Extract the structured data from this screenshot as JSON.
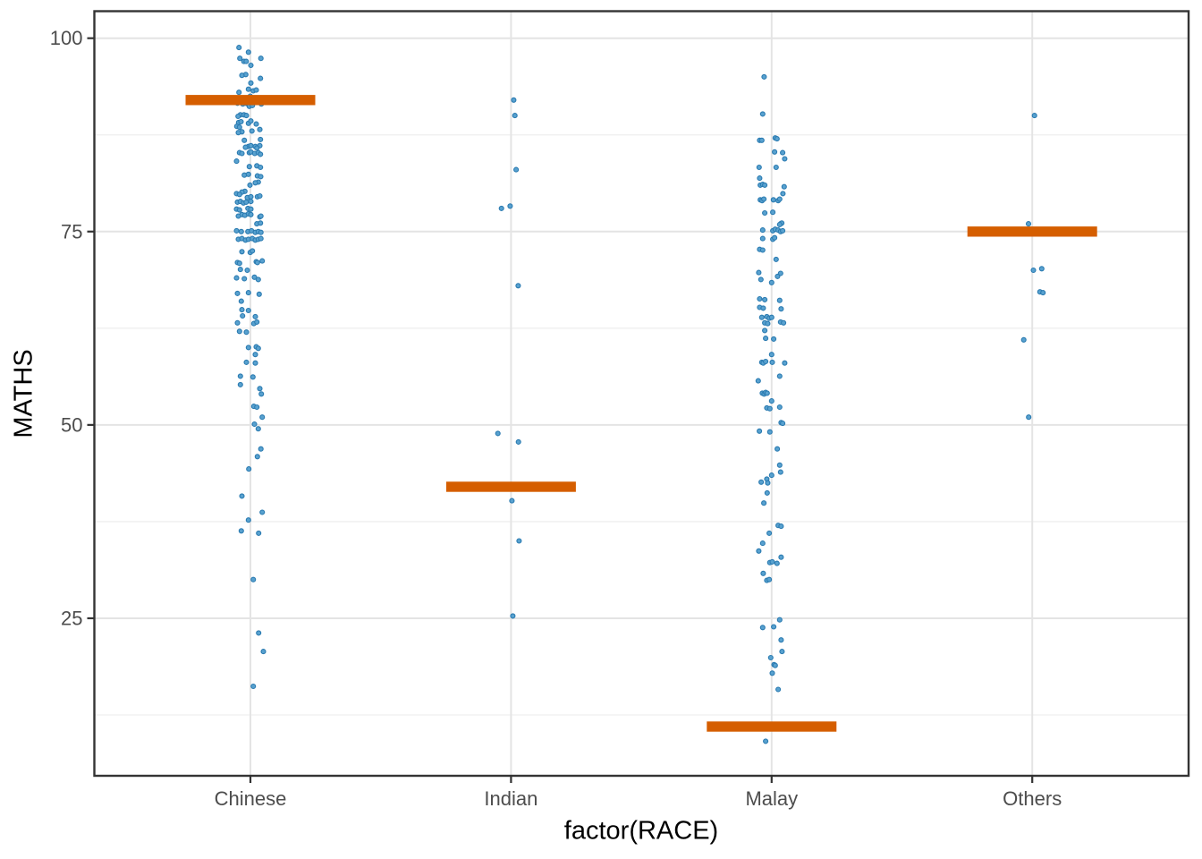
{
  "chart_data": {
    "type": "scatter",
    "subtype": "jitter-strip-plot-with-crossbar-summary",
    "title": "",
    "xlabel": "factor(RACE)",
    "ylabel": "MATHS",
    "categories": [
      "Chinese",
      "Indian",
      "Malay",
      "Others"
    ],
    "y_ticks": [
      100,
      75,
      50,
      25
    ],
    "y_tick_labels": [
      "100",
      "75",
      "50",
      "25"
    ],
    "y_minor_gridlines": [
      87.5,
      62.5,
      37.5,
      12.5
    ],
    "ylim_panel": [
      4.6,
      103.5
    ],
    "grid": "major-and-minor-horizontal, major-vertical-at-categories",
    "legend": "none",
    "crossbars": [
      {
        "category": "Chinese",
        "value": 92
      },
      {
        "category": "Indian",
        "value": 42
      },
      {
        "category": "Malay",
        "value": 11
      },
      {
        "category": "Others",
        "value": 75
      }
    ],
    "series": [
      {
        "name": "Chinese",
        "points": [
          [
            98.8,
            -12.8
          ],
          [
            98.2,
            -2.2
          ],
          [
            97.4,
            -11.8
          ],
          [
            97.4,
            11.7
          ],
          [
            97,
            -7.3
          ],
          [
            97,
            -4.7
          ],
          [
            96.5,
            0.5
          ],
          [
            95.3,
            -5.2
          ],
          [
            95.2,
            -9.5
          ],
          [
            94.8,
            11.2
          ],
          [
            94.2,
            0.5
          ],
          [
            93.4,
            -2.2
          ],
          [
            93.2,
            3.2
          ],
          [
            93,
            -12.8
          ],
          [
            93.3,
            6.5
          ],
          [
            92.5,
            -0.2
          ],
          [
            91.6,
            -14.5
          ],
          [
            91.5,
            -8.5
          ],
          [
            91.6,
            -5.5
          ],
          [
            91.4,
            -2.2
          ],
          [
            91.7,
            0.5
          ],
          [
            91.7,
            9.8
          ],
          [
            91.5,
            12.2
          ],
          [
            91.2,
            -1.2
          ],
          [
            91.3,
            2.2
          ],
          [
            90.1,
            -11.2
          ],
          [
            90.1,
            -7.2
          ],
          [
            89.9,
            -13.8
          ],
          [
            90,
            -4.5
          ],
          [
            89.1,
            -13.2
          ],
          [
            89.2,
            -10.5
          ],
          [
            89,
            -2.2
          ],
          [
            88.9,
            6.5
          ],
          [
            89.3,
            0.5
          ],
          [
            88.6,
            -15.2
          ],
          [
            88.5,
            -12.2
          ],
          [
            88.2,
            10.5
          ],
          [
            88,
            1.7
          ],
          [
            87.9,
            -9.5
          ],
          [
            87.8,
            -13.5
          ],
          [
            86.8,
            -6.8
          ],
          [
            86.9,
            11.2
          ],
          [
            86,
            -2.2
          ],
          [
            86.1,
            0.5
          ],
          [
            85.9,
            -5.5
          ],
          [
            86,
            5.5
          ],
          [
            86.1,
            10.5
          ],
          [
            85.8,
            7.2
          ],
          [
            85.2,
            -12.2
          ],
          [
            85.1,
            -9.5
          ],
          [
            85.2,
            -1.2
          ],
          [
            85.3,
            0.5
          ],
          [
            85.1,
            4.8
          ],
          [
            85.2,
            8.8
          ],
          [
            85,
            11.2
          ],
          [
            84.1,
            -15.5
          ],
          [
            83.4,
            -1.2
          ],
          [
            83.5,
            7.2
          ],
          [
            83.3,
            11.2
          ],
          [
            82.3,
            -6.8
          ],
          [
            82.4,
            -2.2
          ],
          [
            82.2,
            7.8
          ],
          [
            82.1,
            11.5
          ],
          [
            81.4,
            8.8
          ],
          [
            81.3,
            5.5
          ],
          [
            81,
            -0.5
          ],
          [
            80.2,
            -6.2
          ],
          [
            80.1,
            -9.5
          ],
          [
            79.9,
            -15.5
          ],
          [
            79.8,
            -12.2
          ],
          [
            79.4,
            -3.5
          ],
          [
            79.5,
            0.5
          ],
          [
            79.5,
            7.8
          ],
          [
            79.6,
            10.5
          ],
          [
            78.8,
            -14.5
          ],
          [
            78.9,
            -11.2
          ],
          [
            78.7,
            -7.8
          ],
          [
            78.8,
            -4.7
          ],
          [
            78.9,
            0.5
          ],
          [
            77.9,
            -15.5
          ],
          [
            77.8,
            -12.2
          ],
          [
            78,
            -2.8
          ],
          [
            77.9,
            0.5
          ],
          [
            77.2,
            -9.5
          ],
          [
            77.1,
            -6.2
          ],
          [
            77.3,
            -2.2
          ],
          [
            77.2,
            0.5
          ],
          [
            77,
            -13.5
          ],
          [
            76.9,
            10.5
          ],
          [
            77,
            11.7
          ],
          [
            76,
            7.2
          ],
          [
            76.1,
            11.2
          ],
          [
            75.1,
            -15.5
          ],
          [
            75,
            -10.2
          ],
          [
            75,
            -2.8
          ],
          [
            75.1,
            1.2
          ],
          [
            74.9,
            5.5
          ],
          [
            75,
            8.8
          ],
          [
            74.9,
            11.7
          ],
          [
            74,
            -13.5
          ],
          [
            74.1,
            -9.5
          ],
          [
            73.9,
            -5.5
          ],
          [
            74,
            -2.2
          ],
          [
            74.1,
            2.2
          ],
          [
            73.9,
            5.5
          ],
          [
            74,
            8.8
          ],
          [
            74.1,
            11.7
          ],
          [
            72.4,
            -9.5
          ],
          [
            72.3,
            -0.2
          ],
          [
            72.5,
            2.2
          ],
          [
            71,
            -14.5
          ],
          [
            70.9,
            -12.2
          ],
          [
            71.1,
            6.5
          ],
          [
            71,
            7.8
          ],
          [
            71.2,
            13.2
          ],
          [
            70.1,
            -11.2
          ],
          [
            70,
            -3.5
          ],
          [
            69,
            -15.5
          ],
          [
            68.9,
            -6.8
          ],
          [
            69.1,
            4.5
          ],
          [
            68.8,
            8.8
          ],
          [
            67,
            -14.5
          ],
          [
            67.1,
            -2.2
          ],
          [
            66.9,
            9.8
          ],
          [
            66,
            -10.2
          ],
          [
            64.9,
            -9.5
          ],
          [
            64.8,
            -2.2
          ],
          [
            64.1,
            -8.8
          ],
          [
            64,
            5.5
          ],
          [
            63.2,
            -14.5
          ],
          [
            63.1,
            3.8
          ],
          [
            63.3,
            7.2
          ],
          [
            62.1,
            -12.2
          ],
          [
            62,
            -4.5
          ],
          [
            60,
            -2.2
          ],
          [
            60.1,
            6.5
          ],
          [
            59.9,
            8.8
          ],
          [
            59.1,
            5.5
          ],
          [
            58.1,
            -4.5
          ],
          [
            58,
            5.5
          ],
          [
            56.3,
            -11.2
          ],
          [
            56.2,
            2.8
          ],
          [
            55.2,
            -11.2
          ],
          [
            54.7,
            10.5
          ],
          [
            54,
            12.2
          ],
          [
            52.4,
            3.8
          ],
          [
            52.3,
            7.2
          ],
          [
            51,
            13.2
          ],
          [
            50.1,
            4.5
          ],
          [
            49.5,
            8.8
          ],
          [
            46.9,
            11.7
          ],
          [
            45.9,
            7.8
          ],
          [
            44.3,
            -1.8
          ],
          [
            40.8,
            -9.5
          ],
          [
            38.7,
            13.2
          ],
          [
            37.7,
            -2.2
          ],
          [
            36.3,
            -10.2
          ],
          [
            36,
            9.2
          ],
          [
            30,
            3.2
          ],
          [
            23.1,
            9.2
          ],
          [
            20.7,
            14.5
          ],
          [
            16.2,
            3.2
          ]
        ]
      },
      {
        "name": "Indian",
        "points": [
          [
            92,
            3
          ],
          [
            90,
            4.3
          ],
          [
            83,
            5.7
          ],
          [
            78,
            -10.7
          ],
          [
            78.3,
            -1
          ],
          [
            68,
            8
          ],
          [
            48.9,
            -14.7
          ],
          [
            47.8,
            8.3
          ],
          [
            40.2,
            1
          ],
          [
            35,
            9
          ],
          [
            25.3,
            2
          ]
        ]
      },
      {
        "name": "Malay",
        "points": [
          [
            95,
            -8.4
          ],
          [
            90.2,
            -10
          ],
          [
            87.1,
            4
          ],
          [
            87,
            6
          ],
          [
            86.8,
            -13.4
          ],
          [
            86.8,
            -11
          ],
          [
            85.3,
            3.3
          ],
          [
            85.2,
            12.3
          ],
          [
            84.4,
            14.6
          ],
          [
            83.3,
            5
          ],
          [
            83.3,
            -14
          ],
          [
            81.9,
            -13.4
          ],
          [
            81,
            -12.7
          ],
          [
            81.1,
            -10
          ],
          [
            81,
            -7.7
          ],
          [
            80.8,
            14
          ],
          [
            79.9,
            12.6
          ],
          [
            79.1,
            -12.7
          ],
          [
            79,
            -10.7
          ],
          [
            79.2,
            -8.7
          ],
          [
            79.1,
            2
          ],
          [
            79,
            7.3
          ],
          [
            79.2,
            9
          ],
          [
            77.4,
            -7.7
          ],
          [
            77.5,
            1.3
          ],
          [
            76,
            10
          ],
          [
            76.1,
            11.3
          ],
          [
            75.9,
            9
          ],
          [
            75.2,
            -10
          ],
          [
            75.1,
            1.3
          ],
          [
            75.3,
            4
          ],
          [
            75.2,
            7.3
          ],
          [
            75,
            10
          ],
          [
            75.1,
            12.3
          ],
          [
            74.1,
            -10
          ],
          [
            74,
            1.3
          ],
          [
            74.2,
            3.3
          ],
          [
            72.7,
            -13.4
          ],
          [
            72.6,
            -10
          ],
          [
            71.4,
            5
          ],
          [
            69.7,
            -14.4
          ],
          [
            69.6,
            10
          ],
          [
            69.2,
            6.6
          ],
          [
            68.8,
            -12
          ],
          [
            68.4,
            0
          ],
          [
            66.3,
            -13.4
          ],
          [
            66.2,
            -7.7
          ],
          [
            66.1,
            9
          ],
          [
            65.2,
            -13.4
          ],
          [
            65.1,
            -9.4
          ],
          [
            65,
            10.6
          ],
          [
            63.9,
            -11
          ],
          [
            64,
            -5.4
          ],
          [
            63.8,
            -2.7
          ],
          [
            63.9,
            0
          ],
          [
            63.2,
            -7.7
          ],
          [
            63.1,
            -4.4
          ],
          [
            63.3,
            10
          ],
          [
            63.2,
            13.3
          ],
          [
            62.2,
            -7.7
          ],
          [
            61.2,
            -6.7
          ],
          [
            61.1,
            2.3
          ],
          [
            59.1,
            0
          ],
          [
            58.1,
            -11
          ],
          [
            58,
            -9.4
          ],
          [
            58.2,
            -6.7
          ],
          [
            58.1,
            0.7
          ],
          [
            58,
            14.6
          ],
          [
            56.3,
            9
          ],
          [
            55.7,
            -15
          ],
          [
            54.1,
            -10.4
          ],
          [
            54,
            -8.4
          ],
          [
            54.2,
            -6.7
          ],
          [
            54.1,
            -5
          ],
          [
            53.1,
            0
          ],
          [
            52.2,
            -5.4
          ],
          [
            52.1,
            -2
          ],
          [
            52.3,
            9
          ],
          [
            50.3,
            10.6
          ],
          [
            50.2,
            12.3
          ],
          [
            49.2,
            -13.7
          ],
          [
            49.1,
            -2
          ],
          [
            46.9,
            6.3
          ],
          [
            44.8,
            9
          ],
          [
            43.9,
            10
          ],
          [
            43.5,
            0
          ],
          [
            43,
            -5.4
          ],
          [
            42.6,
            -11.7
          ],
          [
            42.5,
            -4.4
          ],
          [
            41.2,
            -5
          ],
          [
            39.9,
            -8.7
          ],
          [
            37,
            7.3
          ],
          [
            36.9,
            10.6
          ],
          [
            36,
            -2.7
          ],
          [
            34.7,
            -10
          ],
          [
            33.7,
            -14.4
          ],
          [
            32.9,
            10.6
          ],
          [
            32.2,
            -2
          ],
          [
            32.3,
            0.7
          ],
          [
            32.1,
            6
          ],
          [
            30.8,
            -9.4
          ],
          [
            29.9,
            -5.4
          ],
          [
            30,
            -2.7
          ],
          [
            24.8,
            9
          ],
          [
            23.8,
            -10
          ],
          [
            23.9,
            2.3
          ],
          [
            22.2,
            10.6
          ],
          [
            20.7,
            11.6
          ],
          [
            19.9,
            -1
          ],
          [
            19,
            2.7
          ],
          [
            18.9,
            4
          ],
          [
            17.9,
            0.7
          ],
          [
            15.8,
            7.3
          ],
          [
            9.1,
            -6.7
          ]
        ]
      },
      {
        "name": "Others",
        "points": [
          [
            90,
            2.5
          ],
          [
            76,
            -4.2
          ],
          [
            70,
            1.3
          ],
          [
            70.2,
            10.6
          ],
          [
            67.2,
            8.6
          ],
          [
            67.1,
            12
          ],
          [
            61,
            -9.5
          ],
          [
            51,
            -4
          ]
        ]
      }
    ],
    "colors": {
      "crossbar": "#D55E00",
      "point_fill": "#58A1CF",
      "point_stroke": "#2A7AB0",
      "gridline_major": "#E4E4E4",
      "gridline_minor": "#EFEFEF",
      "panel_border": "#343434",
      "tick_mark": "#333333",
      "tick_text": "#4D4D4D",
      "axis_title_text": "#000000",
      "panel_background": "#FFFFFF"
    }
  }
}
